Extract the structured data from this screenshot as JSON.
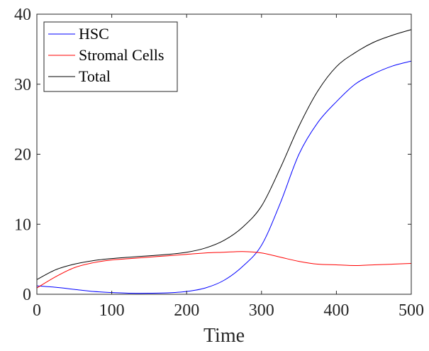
{
  "chart_data": {
    "type": "line",
    "title": "",
    "xlabel": "Time",
    "ylabel": "",
    "xlim": [
      0,
      500
    ],
    "ylim": [
      0,
      40
    ],
    "x_ticks": [
      0,
      100,
      200,
      300,
      400,
      500
    ],
    "y_ticks": [
      0,
      10,
      20,
      30,
      40
    ],
    "grid": false,
    "legend_position": "top-left",
    "x": [
      0,
      25,
      50,
      75,
      100,
      125,
      150,
      175,
      200,
      225,
      250,
      275,
      300,
      325,
      350,
      375,
      400,
      425,
      450,
      475,
      500
    ],
    "series": [
      {
        "name": "HSC",
        "color": "#0000ff",
        "values": [
          1.2,
          1.0,
          0.7,
          0.4,
          0.25,
          0.15,
          0.15,
          0.2,
          0.4,
          0.9,
          2.0,
          4.0,
          7.0,
          13.0,
          20.0,
          24.5,
          27.5,
          30.0,
          31.5,
          32.6,
          33.3
        ]
      },
      {
        "name": "Stromal Cells",
        "color": "#ff0000",
        "values": [
          0.9,
          2.5,
          3.8,
          4.5,
          4.9,
          5.1,
          5.3,
          5.5,
          5.7,
          5.9,
          6.0,
          6.1,
          5.9,
          5.3,
          4.7,
          4.3,
          4.2,
          4.1,
          4.2,
          4.3,
          4.4
        ]
      },
      {
        "name": "Total",
        "color": "#000000",
        "values": [
          2.1,
          3.5,
          4.3,
          4.8,
          5.1,
          5.3,
          5.5,
          5.7,
          6.0,
          6.6,
          7.7,
          9.6,
          12.6,
          18.0,
          24.0,
          29.0,
          32.5,
          34.5,
          36.0,
          37.0,
          37.8
        ]
      }
    ]
  }
}
